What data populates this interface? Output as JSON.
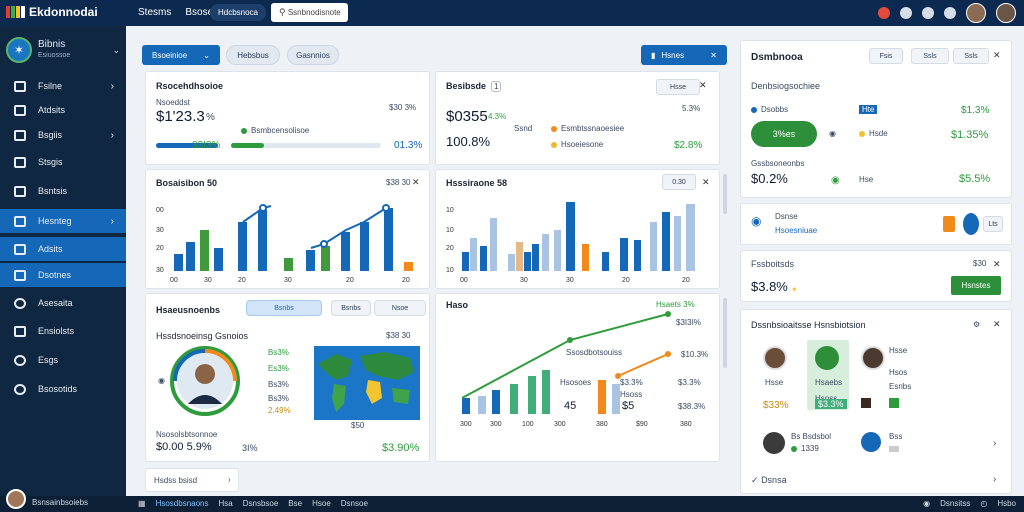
{
  "app": {
    "logo_text": "Ekdonnodai"
  },
  "topbar": {
    "nav": [
      "Stesms",
      "Bsose"
    ],
    "pill": "Hdcbsnoca",
    "search": "Ssnbnodisnote"
  },
  "sidebar": {
    "brand_title": "Bibnis",
    "brand_sub": "Esiuossoe",
    "items": [
      {
        "label": "Fsilne"
      },
      {
        "label": "Atdsits"
      },
      {
        "label": "Bsgiis"
      },
      {
        "label": "Stsgis"
      },
      {
        "label": "Bsntsis"
      },
      {
        "label": "Hesnteg"
      },
      {
        "label": "Adsits"
      },
      {
        "label": "Dsotnes"
      },
      {
        "label": "Asesaita"
      },
      {
        "label": "Ensiolsts"
      },
      {
        "label": "Esgs"
      },
      {
        "label": "Bsosotids"
      }
    ]
  },
  "toolbar": {
    "primary": "Bsoeinioe",
    "tab1": "Hebsbus",
    "tab2": "Gasnnios",
    "right_btn": "Hsnes"
  },
  "card1": {
    "title": "Rsocehdhsoioe",
    "sub": "Nsoeddst",
    "value": "$1'23.3",
    "pct": "%",
    "meta": "$30 3%",
    "label": "Bsmbcensolisoe",
    "left_pct": "33I3%",
    "right_pct": "01.3%"
  },
  "card2": {
    "title": "Besibsde",
    "badge": "1",
    "chip": "Hsse",
    "value": "$0355",
    "delta": "4.3%",
    "value2": "100.8%",
    "tag": "Ssnd",
    "legend1": "Esmbtssnaoesiee",
    "legend2": "Hsoeiesone",
    "pct1": "5.3%",
    "pct2": "$2.8%"
  },
  "chart1": {
    "title": "Bosaisibon 50",
    "meta": "$38 30",
    "ylabels": [
      "00",
      "30",
      "20",
      "30",
      "10"
    ],
    "xlabels": [
      "00",
      "30",
      "20",
      "30",
      "20",
      "20"
    ]
  },
  "chart2": {
    "title": "Hsssiraone 58",
    "chip": "0.30",
    "ylabels": [
      "10",
      "10",
      "20",
      "10",
      "00"
    ],
    "xlabels": [
      "00",
      "30",
      "30",
      "20",
      "20"
    ]
  },
  "card_left3": {
    "title": "Hsaeusnoenbs",
    "tab1": "Bsnbs",
    "tab2": "Bsnbs",
    "tab3": "Nsoe",
    "subtitle": "Hssdsnoeinsg Gsnoios",
    "meta": "$38 30",
    "stats": [
      "Bs3%",
      "Es3%",
      "Bs3%",
      "Bs3%",
      "2.49%"
    ],
    "footer_label": "Nsosolsbtsonnoe",
    "footer_left": "$0.00 5.9%",
    "footer_mid": "3I%",
    "footer_right": "$3.90%"
  },
  "card_mid3": {
    "title": "Haso",
    "tag": "Hsaets 3%",
    "pct_top": "$3I3I%",
    "label1": "Ssosdbotsouiss",
    "pct2": "$10.3%",
    "pct3": "$3.3%",
    "pct4": "$3.3%",
    "n1_label": "Hsosoes",
    "n1": "45",
    "n2_label": "Hsoss",
    "n2": "$5",
    "footer": "$38.3%",
    "xlabels": [
      "300",
      "300",
      "100",
      "300",
      "380",
      "$90",
      "380"
    ]
  },
  "right1": {
    "title": "Dsmbnooa",
    "btn1": "Fsis",
    "btn2": "Ssls",
    "sub": "Denbsiogsochiee",
    "row1_label": "Dsobbs",
    "row1_badge": "Hte",
    "row1_pct": "$1.3%",
    "row2_label": "Hsde",
    "row2_pct": "$1.35%",
    "pill": "3%es",
    "row3_label": "Gssbsoneonbs",
    "row3_val": "$0.2%",
    "row3_tag": "Hse",
    "row3_pct": "$5.5%"
  },
  "right2": {
    "title": "Dsnse",
    "sub": "Hsoesniuae",
    "badge": "Lts"
  },
  "right3": {
    "title": "Fssboitsds",
    "meta": "$30",
    "value": "$3.8%",
    "button": "Hsnstes"
  },
  "right4": {
    "title": "Dssnbsioaitsse Hsnsbiotsion",
    "labels": [
      "Hsse",
      "Hsse",
      "Hsaebs",
      "Esnbs",
      "Hsoss",
      "Hsos"
    ],
    "pct1": "$33%",
    "pct2": "$3.3%",
    "row_title": "Bs Bsdsbol",
    "row_num": "1339",
    "row_tag": "Bss",
    "footer": "Dsnsa"
  },
  "small_card": {
    "label": "Hsdss bsisd"
  },
  "bottombar": {
    "user": "Bsnsainbsoiebs",
    "items": [
      "Hsosdbsnaons",
      "Hsa",
      "Dsnsbsoe",
      "Bse",
      "Hsoe",
      "Dsnsoe"
    ],
    "right": [
      "Dsnsitss",
      "Hsbo"
    ]
  },
  "chart_bars_1": [
    {
      "values": [
        0.18,
        0.42,
        0.52,
        0.98
      ],
      "color": "#1567b8"
    },
    {
      "values": [
        0.38
      ],
      "color": "#3f9a3c"
    }
  ],
  "colors": {
    "primary": "#1567b8",
    "green": "#2e9b3c",
    "orange": "#f28a1b",
    "navy": "#0c2a4f"
  }
}
